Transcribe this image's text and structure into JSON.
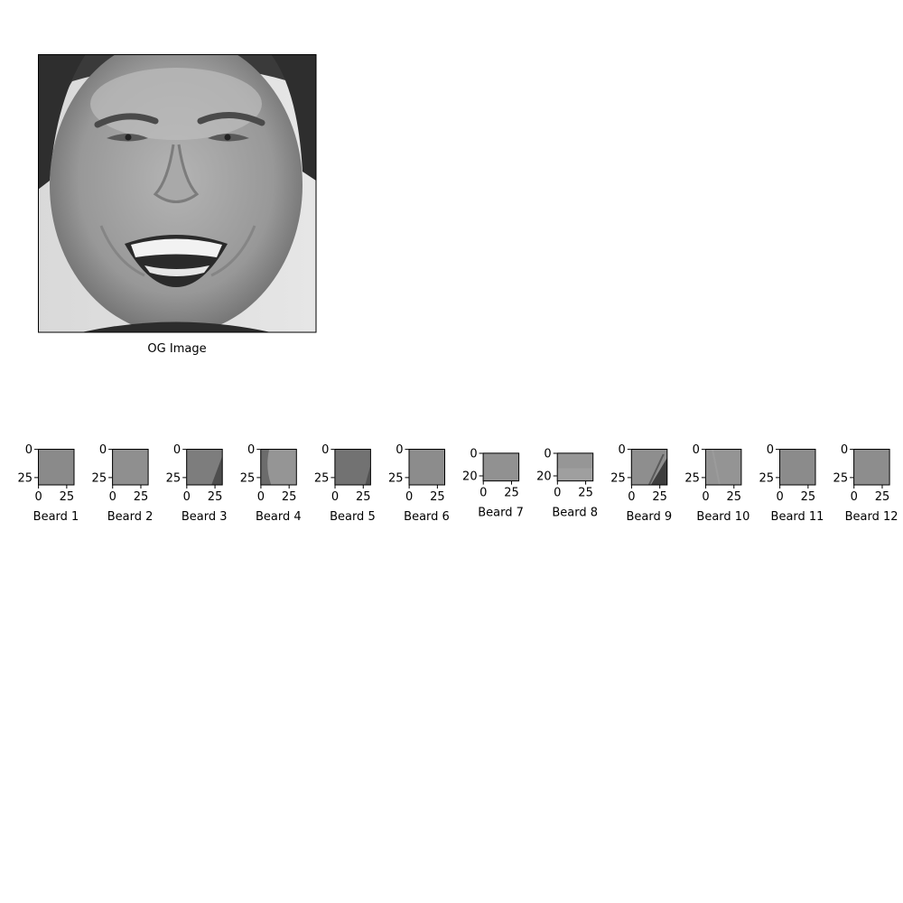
{
  "chart_data": [
    {
      "type": "image",
      "label": "OG Image",
      "show_axes": false
    },
    {
      "type": "image",
      "label": "Beard 1",
      "xticks": [
        "0",
        "25"
      ],
      "yticks": [
        "0",
        "25"
      ],
      "xlim": [
        0,
        32
      ],
      "ylim": [
        32,
        0
      ],
      "shade": "#8a8a8a",
      "feature": "none"
    },
    {
      "type": "image",
      "label": "Beard 2",
      "xticks": [
        "0",
        "25"
      ],
      "yticks": [
        "0",
        "25"
      ],
      "xlim": [
        0,
        32
      ],
      "ylim": [
        32,
        0
      ],
      "shade": "#8f8f8f",
      "feature": "none"
    },
    {
      "type": "image",
      "label": "Beard 3",
      "xticks": [
        "0",
        "25"
      ],
      "yticks": [
        "0",
        "25"
      ],
      "xlim": [
        0,
        32
      ],
      "ylim": [
        32,
        0
      ],
      "shade": "#7d7d7d",
      "feature": "shadow-right"
    },
    {
      "type": "image",
      "label": "Beard 4",
      "xticks": [
        "0",
        "25"
      ],
      "yticks": [
        "0",
        "25"
      ],
      "xlim": [
        0,
        32
      ],
      "ylim": [
        32,
        0
      ],
      "shade": "#959595",
      "feature": "edge-left"
    },
    {
      "type": "image",
      "label": "Beard 5",
      "xticks": [
        "0",
        "25"
      ],
      "yticks": [
        "0",
        "25"
      ],
      "xlim": [
        0,
        32
      ],
      "ylim": [
        32,
        0
      ],
      "shade": "#727272",
      "feature": "shadow-right-soft"
    },
    {
      "type": "image",
      "label": "Beard 6",
      "xticks": [
        "0",
        "25"
      ],
      "yticks": [
        "0",
        "25"
      ],
      "xlim": [
        0,
        32
      ],
      "ylim": [
        32,
        0
      ],
      "shade": "#8c8c8c",
      "feature": "none"
    },
    {
      "type": "image",
      "label": "Beard 7",
      "xticks": [
        "0",
        "25"
      ],
      "yticks": [
        "0",
        "20"
      ],
      "xlim": [
        0,
        32
      ],
      "ylim": [
        25,
        0
      ],
      "shade": "#919191",
      "feature": "none"
    },
    {
      "type": "image",
      "label": "Beard 8",
      "xticks": [
        "0",
        "25"
      ],
      "yticks": [
        "0",
        "20"
      ],
      "xlim": [
        0,
        32
      ],
      "ylim": [
        25,
        0
      ],
      "shade": "#969696",
      "feature": "light-bottom"
    },
    {
      "type": "image",
      "label": "Beard 9",
      "xticks": [
        "0",
        "25"
      ],
      "yticks": [
        "0",
        "25"
      ],
      "xlim": [
        0,
        32
      ],
      "ylim": [
        32,
        0
      ],
      "shade": "#8e8e8e",
      "feature": "diagonal-dark"
    },
    {
      "type": "image",
      "label": "Beard 10",
      "xticks": [
        "0",
        "25"
      ],
      "yticks": [
        "0",
        "25"
      ],
      "xlim": [
        0,
        32
      ],
      "ylim": [
        32,
        0
      ],
      "shade": "#949494",
      "feature": "faint-diagonal"
    },
    {
      "type": "image",
      "label": "Beard 11",
      "xticks": [
        "0",
        "25"
      ],
      "yticks": [
        "0",
        "25"
      ],
      "xlim": [
        0,
        32
      ],
      "ylim": [
        32,
        0
      ],
      "shade": "#8b8b8b",
      "feature": "none"
    },
    {
      "type": "image",
      "label": "Beard 12",
      "xticks": [
        "0",
        "25"
      ],
      "yticks": [
        "0",
        "25"
      ],
      "xlim": [
        0,
        32
      ],
      "ylim": [
        32,
        0
      ],
      "shade": "#8d8d8d",
      "feature": "none"
    }
  ]
}
